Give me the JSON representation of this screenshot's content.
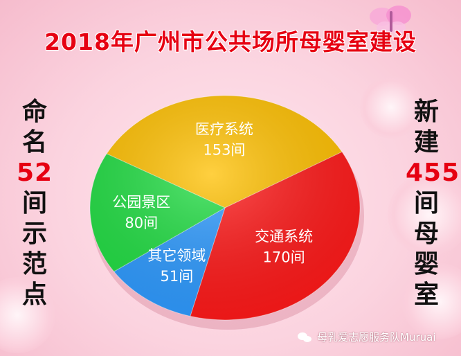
{
  "title": "2018年广州市公共场所母婴室建设",
  "left_column": {
    "chars_top": [
      "命",
      "名"
    ],
    "number": "52",
    "chars_bottom": [
      "间",
      "示",
      "范",
      "点"
    ]
  },
  "right_column": {
    "chars_top": [
      "新",
      "建"
    ],
    "number": "455",
    "chars_bottom": [
      "间",
      "母",
      "婴",
      "室"
    ]
  },
  "watermark": "母乳爱志愿服务队Muruai",
  "colors": {
    "title": "#e60012",
    "accent_number": "#e60012",
    "text": "#111111"
  },
  "chart_data": {
    "type": "pie",
    "title": "2018年广州市公共场所母婴室建设",
    "unit": "间",
    "slices": [
      {
        "label": "医疗系统",
        "value": 153,
        "value_text": "153间",
        "color": "#ffc000"
      },
      {
        "label": "交通系统",
        "value": 170,
        "value_text": "170间",
        "color": "#ff1a1a"
      },
      {
        "label": "其它领域",
        "value": 51,
        "value_text": "51间",
        "color": "#2f9bff"
      },
      {
        "label": "公园景区",
        "value": 80,
        "value_text": "80间",
        "color": "#22dd44"
      }
    ]
  }
}
